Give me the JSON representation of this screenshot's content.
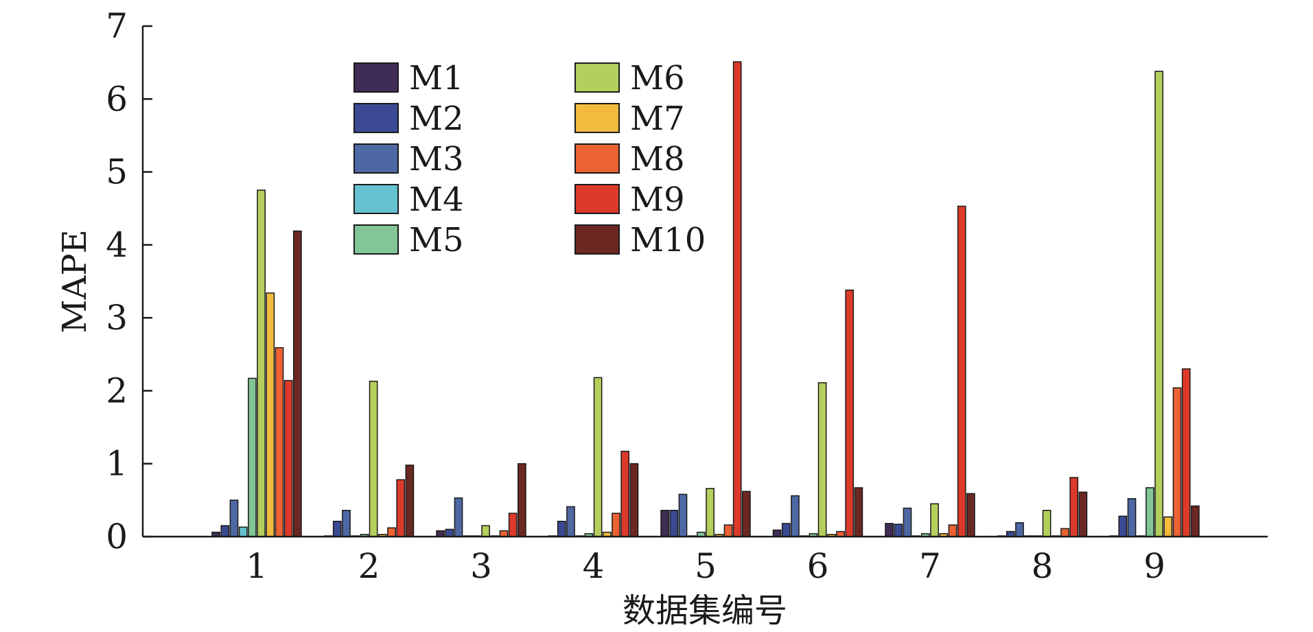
{
  "chart_data": {
    "type": "bar",
    "title": "",
    "xlabel": "数据集编号",
    "ylabel": "MAPE",
    "categories": [
      "1",
      "2",
      "3",
      "4",
      "5",
      "6",
      "7",
      "8",
      "9"
    ],
    "ylim": [
      0,
      7
    ],
    "yticks": [
      "0",
      "1",
      "2",
      "3",
      "4",
      "5",
      "6",
      "7"
    ],
    "grid": false,
    "legend_position": "top-left",
    "series": [
      {
        "name": "M1",
        "color": "#3f2d55",
        "values": [
          0.06,
          0.01,
          0.08,
          0.01,
          0.36,
          0.09,
          0.18,
          0.01,
          0.01
        ]
      },
      {
        "name": "M2",
        "color": "#3b4a93",
        "values": [
          0.15,
          0.21,
          0.1,
          0.21,
          0.36,
          0.18,
          0.17,
          0.07,
          0.28
        ]
      },
      {
        "name": "M3",
        "color": "#4e68a4",
        "values": [
          0.5,
          0.36,
          0.53,
          0.41,
          0.58,
          0.56,
          0.39,
          0.19,
          0.52
        ]
      },
      {
        "name": "M4",
        "color": "#66c2d1",
        "values": [
          0.13,
          0.01,
          0.01,
          0.01,
          0.01,
          0.01,
          0.01,
          0.01,
          0.01
        ]
      },
      {
        "name": "M5",
        "color": "#82c596",
        "values": [
          2.17,
          0.03,
          0.01,
          0.04,
          0.06,
          0.04,
          0.04,
          0.01,
          0.67
        ]
      },
      {
        "name": "M6",
        "color": "#b4cf5c",
        "values": [
          4.75,
          2.13,
          0.15,
          2.18,
          0.66,
          2.11,
          0.45,
          0.36,
          6.38
        ]
      },
      {
        "name": "M7",
        "color": "#f2bb3e",
        "values": [
          3.34,
          0.03,
          0.01,
          0.06,
          0.03,
          0.03,
          0.04,
          0.01,
          0.27
        ]
      },
      {
        "name": "M8",
        "color": "#ec6233",
        "values": [
          2.59,
          0.12,
          0.08,
          0.32,
          0.16,
          0.07,
          0.16,
          0.11,
          2.04
        ]
      },
      {
        "name": "M9",
        "color": "#dc3a2b",
        "values": [
          2.14,
          0.78,
          0.32,
          1.17,
          6.51,
          3.38,
          4.53,
          0.81,
          2.3
        ]
      },
      {
        "name": "M10",
        "color": "#6b2823",
        "values": [
          4.19,
          0.98,
          1.0,
          1.0,
          0.62,
          0.67,
          0.59,
          0.61,
          0.42
        ]
      }
    ]
  }
}
